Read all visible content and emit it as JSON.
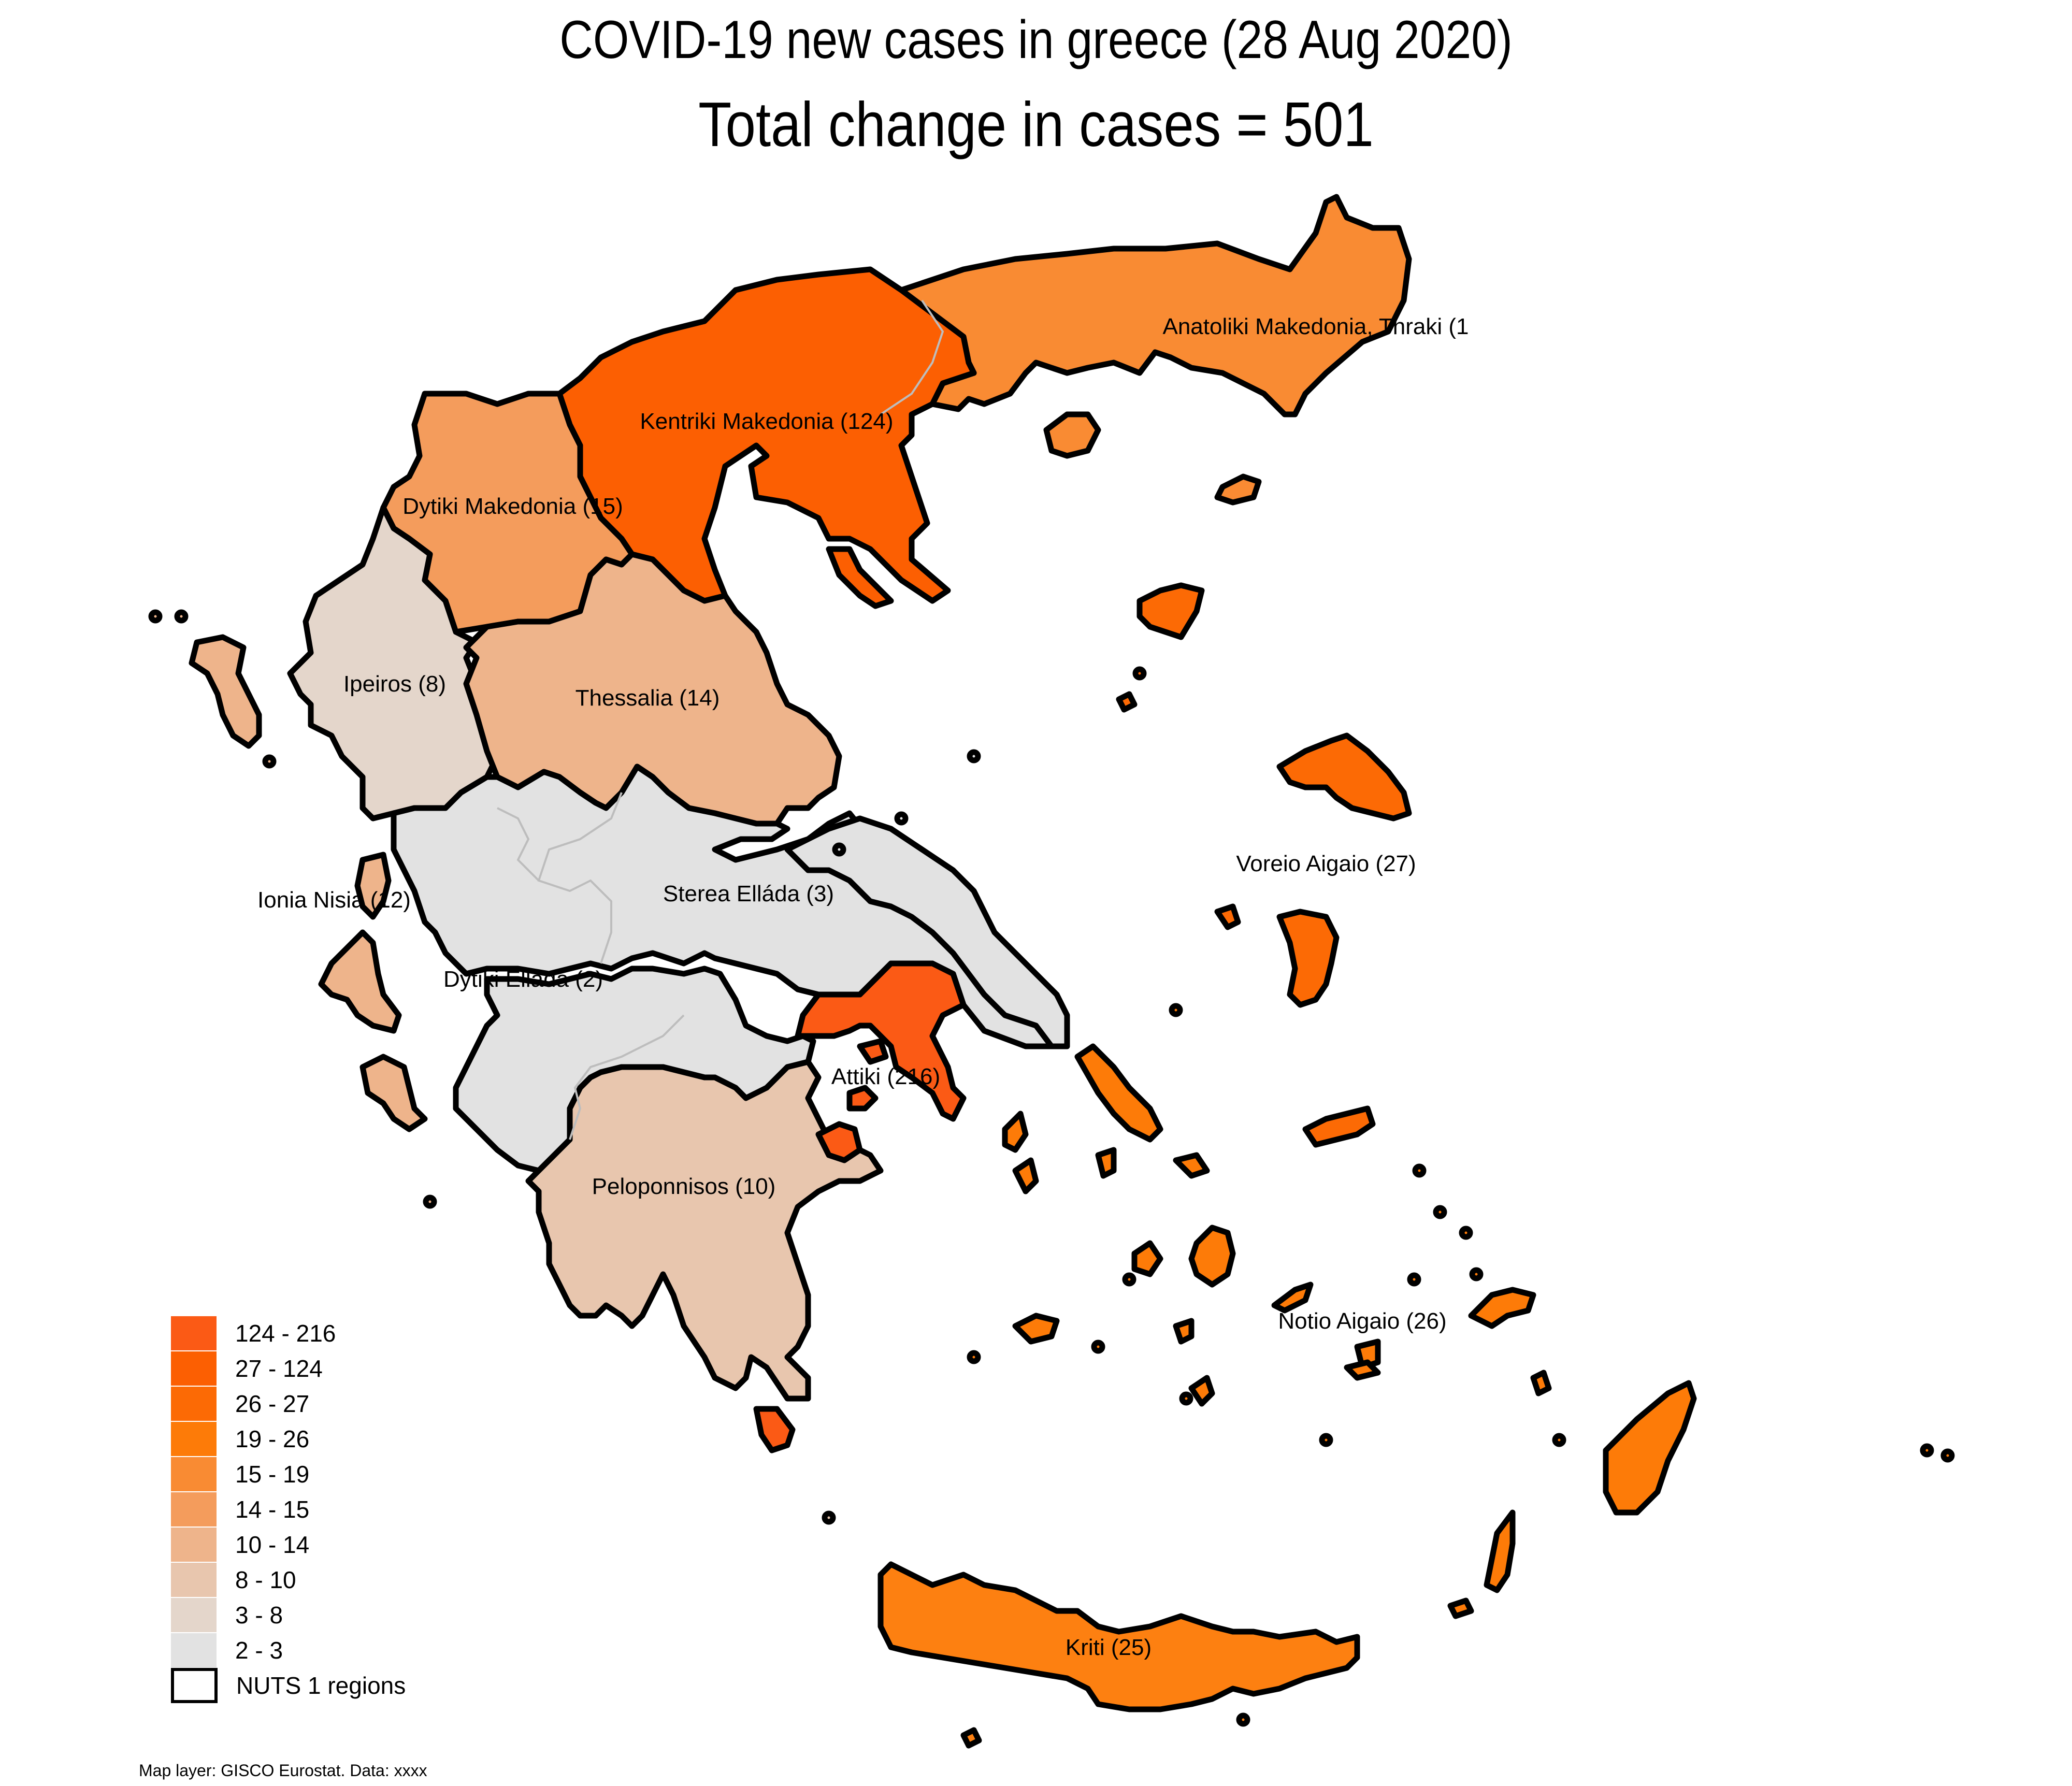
{
  "title": "COVID-19 new cases in greece (28 Aug 2020)",
  "subtitle": "Total change in cases  = 501",
  "regions": {
    "anatoliki": {
      "label": "Anatoliki Makedonia, Thraki (1",
      "color": "#f98b33"
    },
    "kentriki": {
      "label": "Kentriki Makedonia (124)",
      "color": "#fc5f02"
    },
    "dytiki_mak": {
      "label": "Dytiki Makedonia (15)",
      "color": "#f49c5c"
    },
    "ipeiros": {
      "label": "Ipeiros (8)",
      "color": "#e4d6cb"
    },
    "thessalia": {
      "label": "Thessalia (14)",
      "color": "#eeb48b"
    },
    "ionia": {
      "label": "Ionia Nisia (12)",
      "color": "#eeb48b"
    },
    "sterea": {
      "label": "Sterea Elláda (3)",
      "color": "#e2e2e2"
    },
    "dytiki_ell": {
      "label": "Dytiki Elláda (2)",
      "color": "#e2e2e2"
    },
    "attiki": {
      "label": "Attiki (216)",
      "color": "#fb5a15"
    },
    "peloponnisos": {
      "label": "Peloponnisos (10)",
      "color": "#e8c6ae"
    },
    "voreio": {
      "label": "Voreio Aigaio (27)",
      "color": "#fc6a05"
    },
    "notio": {
      "label": "Notio Aigaio (26)",
      "color": "#fd7b08"
    },
    "kriti": {
      "label": "Kriti (25)",
      "color": "#fd8011"
    }
  },
  "legend": {
    "items": [
      {
        "label": "124 - 216",
        "color": "#fb5a15"
      },
      {
        "label": "27 - 124",
        "color": "#fc5f02"
      },
      {
        "label": "26 - 27",
        "color": "#fc6a05"
      },
      {
        "label": "19 - 26",
        "color": "#fd7b08"
      },
      {
        "label": "15 - 19",
        "color": "#f98b33"
      },
      {
        "label": "14 - 15",
        "color": "#f49c5c"
      },
      {
        "label": "10 - 14",
        "color": "#eeb48b"
      },
      {
        "label": "8 - 10",
        "color": "#e8c6ae"
      },
      {
        "label": "3 - 8",
        "color": "#e4d6cb"
      },
      {
        "label": "2 - 3",
        "color": "#e2e2e2"
      }
    ],
    "outline_label": "NUTS 1 regions"
  },
  "source": "Map layer: GISCO Eurostat. Data: xxxx"
}
